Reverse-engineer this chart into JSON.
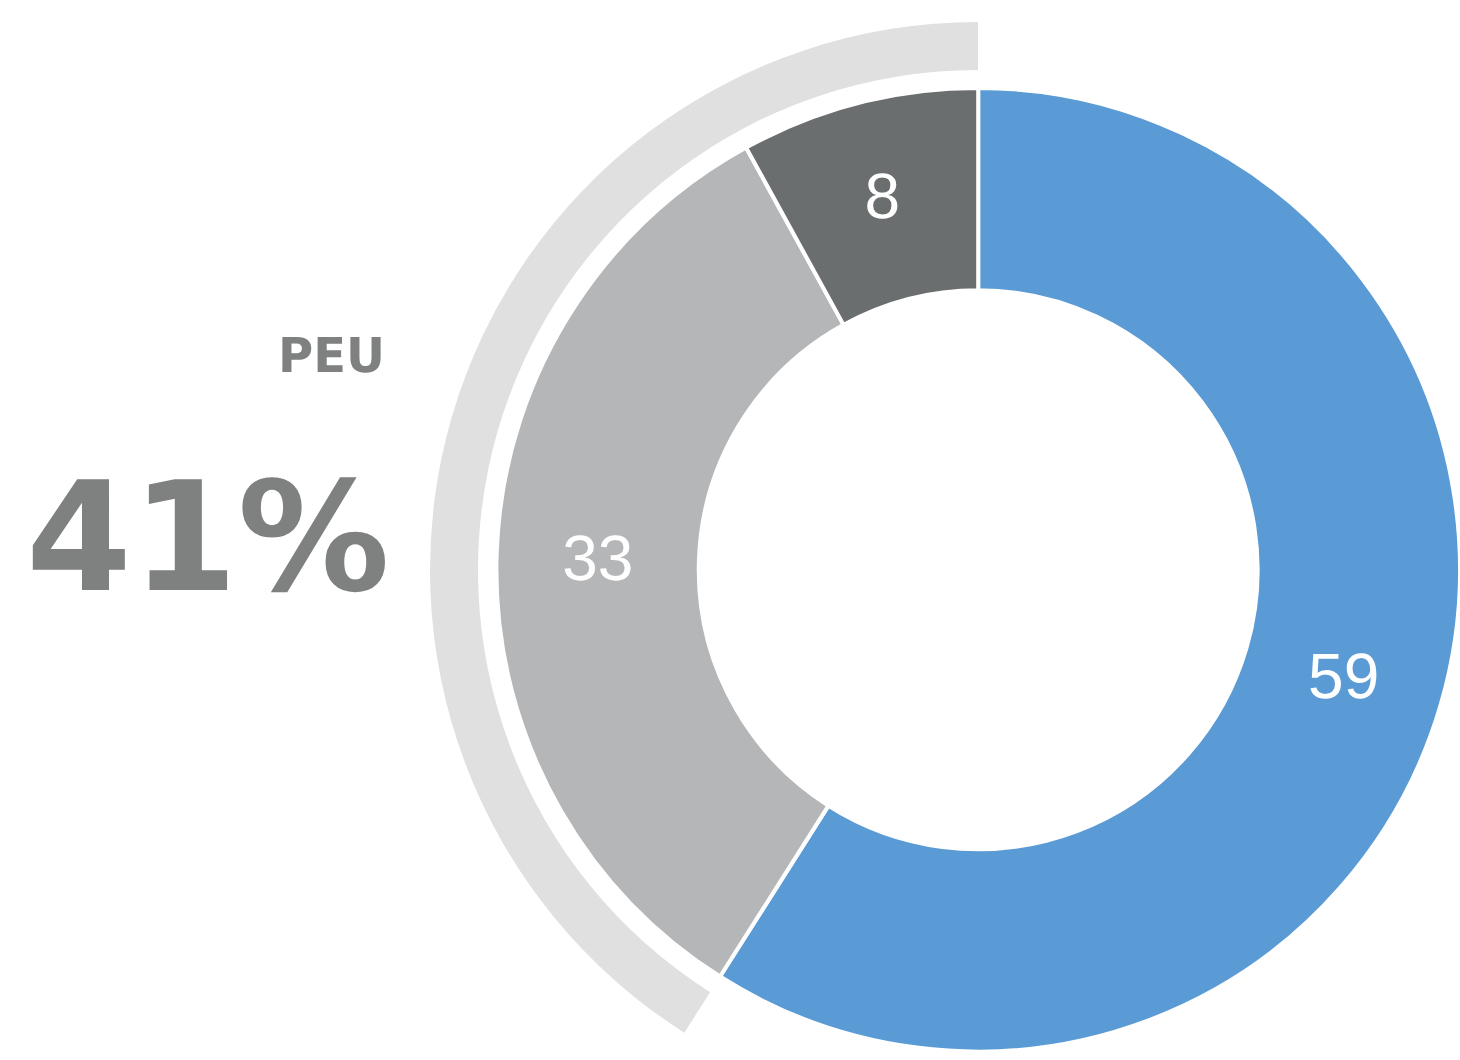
{
  "chart_data": {
    "type": "donut",
    "categories": [
      null,
      null,
      null
    ],
    "values": [
      59,
      33,
      8
    ],
    "colors": [
      "#5b9bd5",
      "#b5b6b8",
      "#6b6e6f"
    ],
    "data_labels": true,
    "annotations": [
      "PEU",
      "41%"
    ]
  }
}
